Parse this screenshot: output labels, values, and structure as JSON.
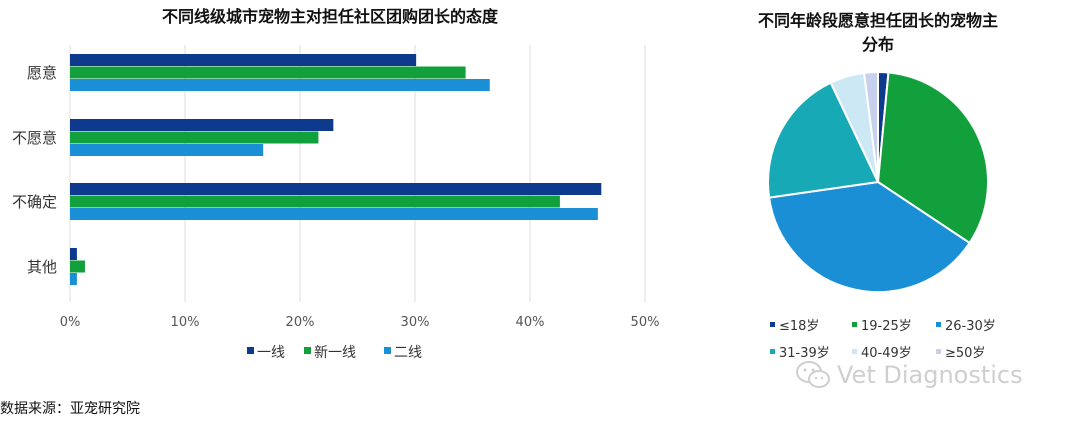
{
  "chart_data": [
    {
      "type": "bar",
      "orientation": "horizontal",
      "title": "不同线级城市宠物主对担任社区团购团长的态度",
      "categories": [
        "愿意",
        "不愿意",
        "不确定",
        "其他"
      ],
      "series": [
        {
          "name": "一线",
          "color": "#0d3a8c",
          "values": [
            30.1,
            22.9,
            46.2,
            0.6
          ]
        },
        {
          "name": "新一线",
          "color": "#12a03c",
          "values": [
            34.4,
            21.6,
            42.6,
            1.3
          ]
        },
        {
          "name": "二线",
          "color": "#1a8fd6",
          "values": [
            36.5,
            16.8,
            45.9,
            0.6
          ]
        }
      ],
      "xlim": [
        0,
        50
      ],
      "xticks": [
        "0%",
        "10%",
        "20%",
        "30%",
        "40%",
        "50%"
      ],
      "grid": true,
      "legend_position": "bottom"
    },
    {
      "type": "pie",
      "title": "不同年龄段愿意担任团长的宠物主分布",
      "title_lines": [
        "不同年龄段愿意担任团长的宠物主",
        "分布"
      ],
      "slices": [
        {
          "name": "≤18岁",
          "value": 1.5,
          "color": "#0d3a8c"
        },
        {
          "name": "19-25岁",
          "value": 32.5,
          "color": "#12a03c"
        },
        {
          "name": "26-30岁",
          "value": 38.0,
          "color": "#1a8fd6"
        },
        {
          "name": "31-39岁",
          "value": 20.0,
          "color": "#17a9b5"
        },
        {
          "name": "40-49岁",
          "value": 5.0,
          "color": "#cde8f5"
        },
        {
          "name": "≥50岁",
          "value": 2.0,
          "color": "#c7d1ee"
        }
      ],
      "legend_position": "bottom"
    }
  ],
  "source": "数据来源：亚宠研究院",
  "watermark": "Vet Diagnostics"
}
